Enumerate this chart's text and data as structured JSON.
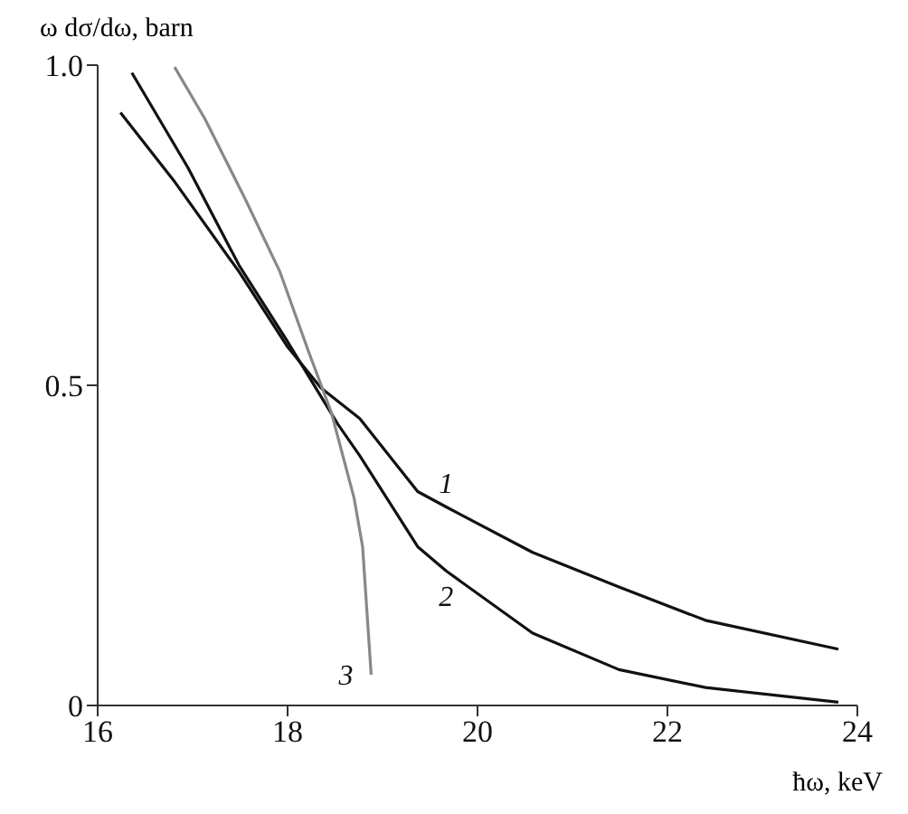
{
  "chart_data": {
    "type": "line",
    "xlabel": "ħω, keV",
    "ylabel": "ω dσ/dω, barn",
    "xlim": [
      16,
      24
    ],
    "xticks": [
      16,
      18,
      20,
      22,
      24
    ],
    "ylim": [
      0,
      1
    ],
    "yticks": [
      0,
      0.5,
      {
        "value": 1,
        "label": "1.0"
      }
    ],
    "grid": false,
    "legend": false,
    "marker": "none",
    "line_style": "solid",
    "series": [
      {
        "name": "1",
        "color": "#111111",
        "x": [
          16.24,
          16.8,
          17.49,
          18.0,
          18.35,
          18.76,
          19.37,
          19.67,
          20.58,
          21.49,
          22.4,
          23.8
        ],
        "values": [
          0.926,
          0.82,
          0.677,
          0.56,
          0.496,
          0.448,
          0.334,
          0.31,
          0.239,
          0.185,
          0.133,
          0.088
        ]
      },
      {
        "name": "2",
        "color": "#111111",
        "x": [
          16.36,
          16.95,
          17.49,
          17.98,
          18.53,
          18.76,
          19.37,
          19.67,
          20.58,
          21.49,
          22.4,
          23.8
        ],
        "values": [
          0.988,
          0.84,
          0.687,
          0.573,
          0.439,
          0.39,
          0.248,
          0.21,
          0.113,
          0.056,
          0.028,
          0.005
        ]
      },
      {
        "name": "3",
        "color": "#888888",
        "x": [
          16.81,
          17.13,
          17.55,
          17.92,
          18.22,
          18.46,
          18.7,
          18.79,
          18.88
        ],
        "values": [
          0.997,
          0.916,
          0.792,
          0.677,
          0.553,
          0.458,
          0.324,
          0.248,
          0.048
        ]
      }
    ]
  }
}
